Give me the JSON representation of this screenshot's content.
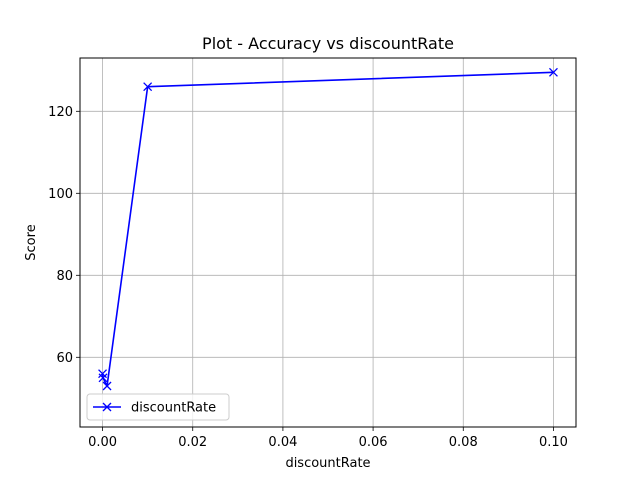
{
  "chart_data": {
    "type": "line",
    "title": "Plot - Accuracy vs discountRate",
    "xlabel": "discountRate",
    "ylabel": "Score",
    "xlim": [
      -0.005,
      0.105
    ],
    "ylim": [
      43,
      133
    ],
    "xticks": [
      0.0,
      0.02,
      0.04,
      0.06,
      0.08,
      0.1
    ],
    "xtick_labels": [
      "0.00",
      "0.02",
      "0.04",
      "0.06",
      "0.08",
      "0.10"
    ],
    "yticks": [
      60,
      80,
      100,
      120
    ],
    "ytick_labels": [
      "60",
      "80",
      "100",
      "120"
    ],
    "grid": true,
    "legend_position": "lower-left",
    "series": [
      {
        "name": "discountRate",
        "color": "#0000ff",
        "marker": "x",
        "x": [
          0.0,
          0.0001,
          0.001,
          0.01,
          0.1
        ],
        "y": [
          56,
          55,
          53,
          126,
          129.5
        ]
      }
    ]
  }
}
